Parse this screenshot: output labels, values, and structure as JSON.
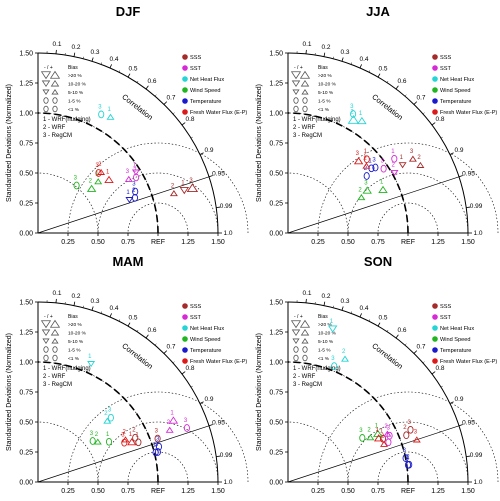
{
  "chart_data": {
    "type": "scatter",
    "subtype": "taylor-diagram",
    "std_axis": {
      "label": "Standardized Deviations (Normalized)",
      "ticks": [
        "0.00",
        "0.25",
        "0.50",
        "0.75",
        "1.00",
        "1.25",
        "1.50"
      ],
      "bottom_ticks": [
        "0.25",
        "0.50",
        "0.75",
        "REF",
        "1.25",
        "1.50"
      ],
      "range": [
        0,
        1.5
      ]
    },
    "correlation_axis": {
      "label": "Correlation",
      "major_ticks": [
        "0.1",
        "0.2",
        "0.3",
        "0.4",
        "0.5",
        "0.6",
        "0.7",
        "0.8",
        "0.9",
        "0.95",
        "0.99",
        "1.0"
      ]
    },
    "reference_std": 1.0,
    "legend_colors": {
      "SSS": "#a52a2a",
      "SST": "#d62ad6",
      "Net Heat Flux": "#25d4d4",
      "Wind Speed": "#22b522",
      "Temperature": "#1a1acc",
      "Fresh Water Flux (E-P)": "#dd1a1a"
    },
    "legend": {
      "series": [
        "SSS",
        "SST",
        "Net Heat Flux",
        "Wind Speed",
        "Temperature",
        "Fresh Water Flux (E-P)"
      ],
      "bias_title": "Bias",
      "bias_sign": "- / +",
      "bias_classes": [
        ">20 %",
        "10-20 %",
        "5-10 %",
        "1-5 %",
        "<1 %"
      ],
      "models": [
        "1 - WRF(nudging)",
        "2 - WRF",
        "3 - RegCM"
      ]
    },
    "panels": [
      {
        "title": "DJF",
        "points": [
          {
            "series": "SSS",
            "model": "1",
            "std": 1.27,
            "corr": 0.96,
            "bias": "neg-3",
            "label": "1"
          },
          {
            "series": "SSS",
            "model": "2",
            "std": 1.18,
            "corr": 0.96,
            "bias": "pos-2",
            "label": "2"
          },
          {
            "series": "SSS",
            "model": "3",
            "std": 1.34,
            "corr": 0.96,
            "bias": "pos-4",
            "label": "3"
          },
          {
            "series": "SST",
            "model": "1",
            "std": 0.96,
            "corr": 0.85,
            "bias": "neg-2",
            "label": "1"
          },
          {
            "series": "SST",
            "model": "2",
            "std": 0.94,
            "corr": 0.87,
            "bias": "pos-1",
            "label": "2"
          },
          {
            "series": "SST",
            "model": "3",
            "std": 0.88,
            "corr": 0.86,
            "bias": "pos-2",
            "label": "3"
          },
          {
            "series": "Net Heat Flux",
            "model": "1",
            "std": 1.14,
            "corr": 0.53,
            "bias": "pos-2",
            "label": "1"
          },
          {
            "series": "Net Heat Flux",
            "model": "3",
            "std": 1.12,
            "corr": 0.47,
            "bias": "pos-1",
            "label": "3"
          },
          {
            "series": "Wind Speed",
            "model": "1",
            "std": 0.66,
            "corr": 0.76,
            "bias": "pos-2",
            "label": "1"
          },
          {
            "series": "Wind Speed",
            "model": "2",
            "std": 0.58,
            "corr": 0.77,
            "bias": "pos-3",
            "label": "2"
          },
          {
            "series": "Wind Speed",
            "model": "3",
            "std": 0.51,
            "corr": 0.63,
            "bias": "pos-1",
            "label": "3"
          },
          {
            "series": "Temperature",
            "model": "1",
            "std": 0.81,
            "corr": 0.94,
            "bias": "neg-2",
            "label": "1"
          },
          {
            "series": "Temperature",
            "model": "2",
            "std": 0.86,
            "corr": 0.94,
            "bias": "pos-1",
            "label": "2"
          },
          {
            "series": "Temperature",
            "model": "3",
            "std": 0.88,
            "corr": 0.92,
            "bias": "pos-1",
            "label": "3"
          },
          {
            "series": "Fresh Water Flux (E-P)",
            "model": "1",
            "std": 0.74,
            "corr": 0.8,
            "bias": "pos-3",
            "label": "1"
          },
          {
            "series": "Fresh Water Flux (E-P)",
            "model": "2",
            "std": 0.73,
            "corr": 0.72,
            "bias": "pos-2",
            "label": "2"
          },
          {
            "series": "Fresh Water Flux (E-P)",
            "model": "3",
            "std": 0.71,
            "corr": 0.71,
            "bias": "pos-1",
            "label": "3"
          }
        ]
      },
      {
        "title": "JJA",
        "points": [
          {
            "series": "SSS",
            "model": "1",
            "std": 1.11,
            "corr": 0.86,
            "bias": "neg-2",
            "label": "1"
          },
          {
            "series": "SSS",
            "model": "2",
            "std": 1.24,
            "corr": 0.89,
            "bias": "pos-2",
            "label": "2"
          },
          {
            "series": "SSS",
            "model": "3",
            "std": 1.21,
            "corr": 0.86,
            "bias": "pos-2",
            "label": "3"
          },
          {
            "series": "SST",
            "model": "1",
            "std": 1.08,
            "corr": 0.82,
            "bias": "pos-1",
            "label": "1"
          },
          {
            "series": "SST",
            "model": "2",
            "std": 1.02,
            "corr": 0.87,
            "bias": "neg-2",
            "label": "2"
          },
          {
            "series": "SST",
            "model": "3",
            "std": 0.96,
            "corr": 0.83,
            "bias": "pos-1",
            "label": "3"
          },
          {
            "series": "Net Heat Flux",
            "model": "1",
            "std": 1.12,
            "corr": 0.55,
            "bias": "pos-3",
            "label": "1"
          },
          {
            "series": "Net Heat Flux",
            "model": "2",
            "std": 1.09,
            "corr": 0.5,
            "bias": "pos-4",
            "label": "2"
          },
          {
            "series": "Net Heat Flux",
            "model": "3",
            "std": 1.13,
            "corr": 0.48,
            "bias": "pos-1",
            "label": "3"
          },
          {
            "series": "Wind Speed",
            "model": "1",
            "std": 0.87,
            "corr": 0.91,
            "bias": "pos-3",
            "label": "1"
          },
          {
            "series": "Wind Speed",
            "model": "2",
            "std": 0.68,
            "corr": 0.9,
            "bias": "pos-2",
            "label": "2"
          },
          {
            "series": "Wind Speed",
            "model": "3",
            "std": 0.75,
            "corr": 0.88,
            "bias": "pos-3",
            "label": "3"
          },
          {
            "series": "Temperature",
            "model": "1",
            "std": 0.88,
            "corr": 0.79,
            "bias": "neg-1",
            "label": "1"
          },
          {
            "series": "Temperature",
            "model": "2",
            "std": 0.81,
            "corr": 0.81,
            "bias": "pos-1",
            "label": "2"
          },
          {
            "series": "Temperature",
            "model": "3",
            "std": 0.91,
            "corr": 0.8,
            "bias": "neg-1",
            "label": "3"
          },
          {
            "series": "Fresh Water Flux (E-P)",
            "model": "1",
            "std": 0.9,
            "corr": 0.73,
            "bias": "pos-1",
            "label": "1"
          },
          {
            "series": "Fresh Water Flux (E-P)",
            "model": "2",
            "std": 0.86,
            "corr": 0.76,
            "bias": "pos-2",
            "label": "2"
          },
          {
            "series": "Fresh Water Flux (E-P)",
            "model": "3",
            "std": 0.84,
            "corr": 0.7,
            "bias": "pos-3",
            "label": "3"
          }
        ]
      },
      {
        "title": "MAM",
        "points": [
          {
            "series": "SSS",
            "model": "1",
            "std": 0.9,
            "corr": 0.93,
            "bias": "pos-1",
            "label": "1"
          },
          {
            "series": "SSS",
            "model": "2",
            "std": 0.89,
            "corr": 0.91,
            "bias": "pos-1",
            "label": "2"
          },
          {
            "series": "SSS",
            "model": "3",
            "std": 1.06,
            "corr": 0.94,
            "bias": "pos-1",
            "label": "3"
          },
          {
            "series": "SST",
            "model": "1",
            "std": 1.24,
            "corr": 0.91,
            "bias": "pos-3",
            "label": "1"
          },
          {
            "series": "SST",
            "model": "2",
            "std": 1.18,
            "corr": 0.93,
            "bias": "pos-2",
            "label": "2"
          },
          {
            "series": "SST",
            "model": "3",
            "std": 1.32,
            "corr": 0.94,
            "bias": "pos-1",
            "label": "3"
          },
          {
            "series": "Net Heat Flux",
            "model": "1",
            "std": 1.08,
            "corr": 0.41,
            "bias": "neg-2",
            "label": "1"
          },
          {
            "series": "Net Heat Flux",
            "model": "2",
            "std": 0.77,
            "corr": 0.75,
            "bias": "pos-2",
            "label": "2"
          },
          {
            "series": "Net Heat Flux",
            "model": "3",
            "std": 0.81,
            "corr": 0.75,
            "bias": "neg-1",
            "label": "3"
          },
          {
            "series": "Wind Speed",
            "model": "1",
            "std": 0.68,
            "corr": 0.87,
            "bias": "pos-1",
            "label": "1"
          },
          {
            "series": "Wind Speed",
            "model": "2",
            "std": 0.6,
            "corr": 0.83,
            "bias": "pos-2",
            "label": "2"
          },
          {
            "series": "Wind Speed",
            "model": "3",
            "std": 0.57,
            "corr": 0.8,
            "bias": "pos-1",
            "label": "3"
          },
          {
            "series": "Temperature",
            "model": "1",
            "std": 1.01,
            "corr": 0.97,
            "bias": "neg-1",
            "label": "1"
          },
          {
            "series": "Temperature",
            "model": "2",
            "std": 1.03,
            "corr": 0.97,
            "bias": "neg-1",
            "label": "2"
          },
          {
            "series": "Temperature",
            "model": "3",
            "std": 1.05,
            "corr": 0.96,
            "bias": "pos-1",
            "label": "3"
          },
          {
            "series": "Fresh Water Flux (E-P)",
            "model": "1",
            "std": 0.85,
            "corr": 0.92,
            "bias": "pos-3",
            "label": "1"
          },
          {
            "series": "Fresh Water Flux (E-P)",
            "model": "2",
            "std": 0.81,
            "corr": 0.9,
            "bias": "pos-2",
            "label": "2"
          },
          {
            "series": "Fresh Water Flux (E-P)",
            "model": "3",
            "std": 0.79,
            "corr": 0.91,
            "bias": "pos-1",
            "label": "3"
          }
        ]
      },
      {
        "title": "SON",
        "points": [
          {
            "series": "SSS",
            "model": "1",
            "std": 0.87,
            "corr": 0.91,
            "bias": "pos-1",
            "label": "1"
          },
          {
            "series": "SSS",
            "model": "2",
            "std": 1.06,
            "corr": 0.93,
            "bias": "neg-1",
            "label": "2"
          },
          {
            "series": "SSS",
            "model": "3",
            "std": 1.11,
            "corr": 0.92,
            "bias": "pos-1",
            "label": "3"
          },
          {
            "series": "SST",
            "model": "1",
            "std": 0.9,
            "corr": 0.93,
            "bias": "pos-1",
            "label": "1"
          },
          {
            "series": "SST",
            "model": "2",
            "std": 0.92,
            "corr": 0.9,
            "bias": "pos-2",
            "label": "2"
          },
          {
            "series": "SST",
            "model": "3",
            "std": 0.93,
            "corr": 0.91,
            "bias": "neg-1",
            "label": "3"
          },
          {
            "series": "Net Heat Flux",
            "model": "1",
            "std": 1.33,
            "corr": 0.28,
            "bias": "neg-3",
            "label": "1"
          },
          {
            "series": "Net Heat Flux",
            "model": "2",
            "std": 1.13,
            "corr": 0.42,
            "bias": "pos-2",
            "label": "2"
          },
          {
            "series": "Net Heat Flux",
            "model": "3",
            "std": 1.04,
            "corr": 0.37,
            "bias": "pos-1",
            "label": "3"
          },
          {
            "series": "Wind Speed",
            "model": "1",
            "std": 0.85,
            "corr": 0.88,
            "bias": "pos-3",
            "label": "1"
          },
          {
            "series": "Wind Speed",
            "model": "2",
            "std": 0.78,
            "corr": 0.88,
            "bias": "pos-2",
            "label": "2"
          },
          {
            "series": "Wind Speed",
            "model": "3",
            "std": 0.72,
            "corr": 0.86,
            "bias": "pos-1",
            "label": "3"
          },
          {
            "series": "Temperature",
            "model": "1",
            "std": 1.01,
            "corr": 0.99,
            "bias": "neg-1",
            "label": "1"
          },
          {
            "series": "Temperature",
            "model": "2",
            "std": 1.02,
            "corr": 0.99,
            "bias": "pos-1",
            "label": "2"
          },
          {
            "series": "Temperature",
            "model": "3",
            "std": 1.0,
            "corr": 0.98,
            "bias": "pos-1",
            "label": "3"
          },
          {
            "series": "Fresh Water Flux (E-P)",
            "model": "1",
            "std": 0.84,
            "corr": 0.9,
            "bias": "pos-3",
            "label": "1"
          },
          {
            "series": "Fresh Water Flux (E-P)",
            "model": "2",
            "std": 0.86,
            "corr": 0.93,
            "bias": "pos-2",
            "label": "2"
          },
          {
            "series": "Fresh Water Flux (E-P)",
            "model": "3",
            "std": 1.13,
            "corr": 0.95,
            "bias": "pos-2",
            "label": "3"
          }
        ]
      }
    ]
  }
}
